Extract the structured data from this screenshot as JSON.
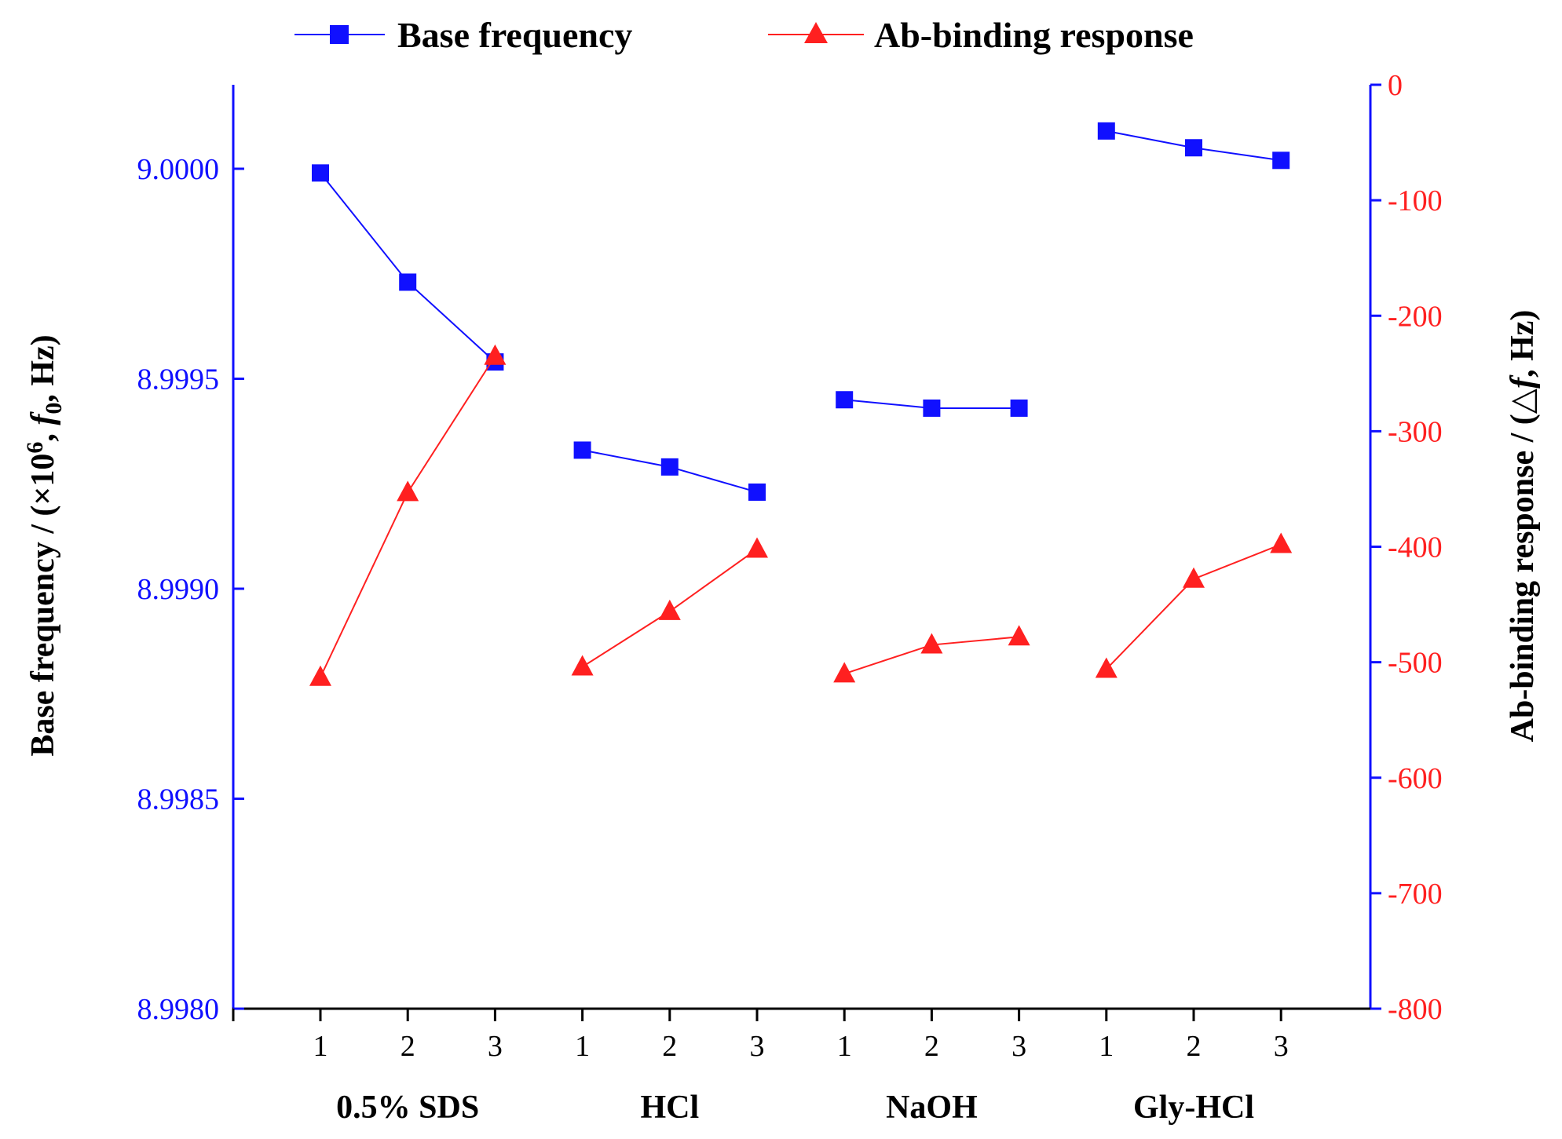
{
  "chart_data": {
    "type": "line",
    "legend": {
      "base": "Base frequency",
      "response": "Ab-binding response",
      "placement": "top-center"
    },
    "x_ticks": [
      "1",
      "2",
      "3",
      "1",
      "2",
      "3",
      "1",
      "2",
      "3",
      "1",
      "2",
      "3"
    ],
    "groups": [
      "0.5% SDS",
      "HCl",
      "NaOH",
      "Gly-HCl"
    ],
    "y_left": {
      "title_prefix": "Base frequency / (×10",
      "title_exp": "6",
      "title_sep": ", ",
      "title_var": "f",
      "title_sub": "0",
      "title_suffix": ", Hz)",
      "range": [
        8.998,
        9.0002
      ],
      "ticks": [
        "8.9980",
        "8.9985",
        "8.9990",
        "8.9995",
        "9.0000"
      ],
      "tick_values": [
        8.998,
        8.9985,
        8.999,
        8.9995,
        9.0
      ],
      "color": "#1010ff"
    },
    "y_right": {
      "title_prefix": "Ab-binding response / (",
      "title_var": "△f",
      "title_suffix": ", Hz)",
      "range": [
        -800,
        0
      ],
      "ticks": [
        "0",
        "-100",
        "-200",
        "-300",
        "-400",
        "-500",
        "-600",
        "-700",
        "-800"
      ],
      "tick_values": [
        0,
        -100,
        -200,
        -300,
        -400,
        -500,
        -600,
        -700,
        -800
      ],
      "color": "#ff2020"
    },
    "series": [
      {
        "name": "Base frequency",
        "axis": "left",
        "color": "#1010ff",
        "marker": "square",
        "groups": [
          [
            8.99999,
            8.99973,
            8.99954
          ],
          [
            8.99933,
            8.99929,
            8.99923
          ],
          [
            8.99945,
            8.99943,
            8.99943
          ],
          [
            9.00009,
            9.00005,
            9.00002
          ]
        ]
      },
      {
        "name": "Ab-binding response",
        "axis": "right",
        "color": "#ff2020",
        "marker": "triangle",
        "groups": [
          [
            -513,
            -353,
            -235
          ],
          [
            -504,
            -456,
            -402
          ],
          [
            -510,
            -485,
            -478
          ],
          [
            -506,
            -428,
            -398
          ]
        ]
      }
    ]
  }
}
